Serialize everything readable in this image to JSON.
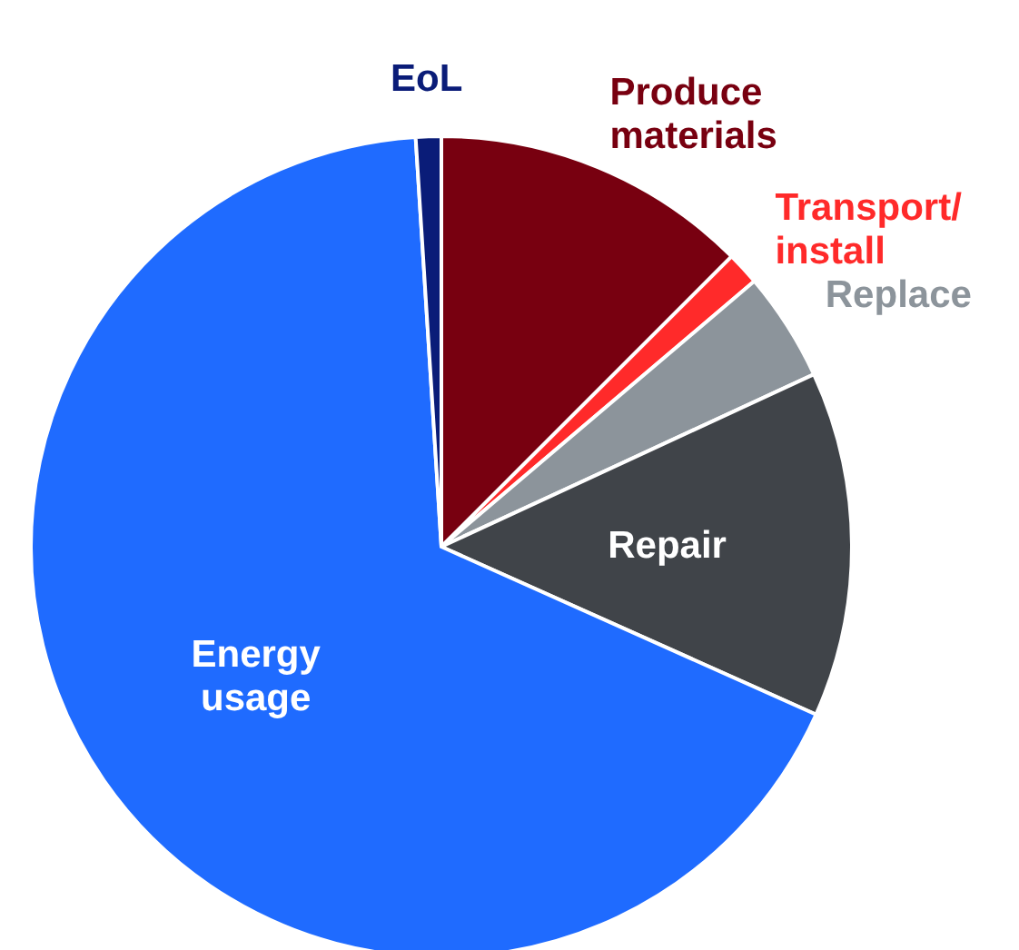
{
  "chart_data": {
    "type": "pie",
    "categories": [
      "Produce materials",
      "Transport/install",
      "Replace",
      "Repair",
      "Energy usage",
      "EoL"
    ],
    "values": [
      12.5,
      1.3,
      4.3,
      13.6,
      67.3,
      1
    ],
    "colors": [
      "#780010",
      "#ff2a2a",
      "#8c949b",
      "#404449",
      "#1f6bff",
      "#0a1c78"
    ]
  }
}
